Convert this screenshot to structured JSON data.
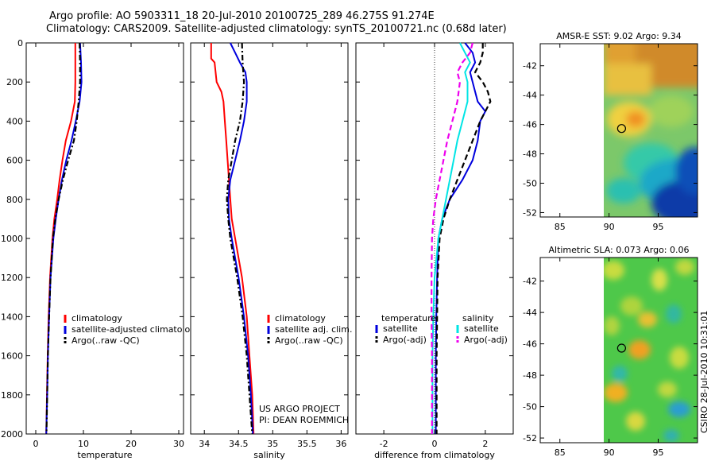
{
  "header": {
    "line1": "Argo profile: AO 5903311_18 20-Jul-2010 20100725_289 46.275S 91.274E",
    "line2": "Climatology: CARS2009. Satellite-adjusted climatology: synTS_20100721.nc (0.68d later)"
  },
  "side_label": "CSIRO 28-Jul-2010 10:31:01",
  "credit": {
    "line1": "US ARGO PROJECT",
    "line2": "PI: DEAN ROEMMICH"
  },
  "colors": {
    "red": "#ff0000",
    "blue": "#0000dd",
    "black": "#000000",
    "cyan": "#00e5e5",
    "magenta": "#ee00ee"
  },
  "chart_data": [
    {
      "id": "temperature",
      "type": "line",
      "xlabel": "temperature",
      "xlim": [
        -2,
        31
      ],
      "xticks": [
        0,
        10,
        20,
        30
      ],
      "ylim": [
        2000,
        0
      ],
      "yticks": [
        0,
        200,
        400,
        600,
        800,
        1000,
        1200,
        1400,
        1600,
        1800,
        2000
      ],
      "legend": [
        "climatology",
        "satellite-adjusted climatolo",
        "Argo(..raw -QC)"
      ],
      "series": [
        {
          "name": "climatology",
          "color": "red",
          "dash": "solid",
          "depth": [
            0,
            100,
            200,
            300,
            400,
            500,
            600,
            700,
            800,
            900,
            1000,
            1200,
            1400,
            1600,
            1800,
            2000
          ],
          "values": [
            8.3,
            8.3,
            8.3,
            8.2,
            7.4,
            6.3,
            5.6,
            5.0,
            4.5,
            3.9,
            3.5,
            3.0,
            2.7,
            2.5,
            2.35,
            2.2
          ]
        },
        {
          "name": "satellite-adjusted climatology",
          "color": "blue",
          "dash": "solid",
          "depth": [
            0,
            100,
            200,
            300,
            400,
            500,
            600,
            700,
            800,
            900,
            1000,
            1200,
            1400,
            1600,
            1800,
            2000
          ],
          "values": [
            9.3,
            9.5,
            9.6,
            9.2,
            8.4,
            7.5,
            6.4,
            5.5,
            4.8,
            4.2,
            3.7,
            3.1,
            2.8,
            2.55,
            2.4,
            2.2
          ]
        },
        {
          "name": "Argo(..raw -QC)",
          "color": "black",
          "dash": "dashdot",
          "depth": [
            0,
            100,
            200,
            300,
            400,
            500,
            600,
            700,
            800,
            900,
            1000,
            1200,
            1400,
            1600,
            1800,
            2000
          ],
          "values": [
            9.2,
            9.3,
            9.3,
            9.0,
            8.6,
            8.0,
            6.8,
            5.7,
            4.8,
            4.1,
            3.6,
            3.1,
            2.8,
            2.55,
            2.4,
            2.25
          ]
        }
      ]
    },
    {
      "id": "salinity",
      "type": "line",
      "xlabel": "salinity",
      "xlim": [
        33.8,
        36.1
      ],
      "xticks": [
        34,
        34.5,
        35,
        35.5,
        36
      ],
      "ylim": [
        2000,
        0
      ],
      "yticks": [
        0,
        200,
        400,
        600,
        800,
        1000,
        1200,
        1400,
        1600,
        1800,
        2000
      ],
      "legend": [
        "climatology",
        "satellite adj. clim.",
        "Argo(..raw -QC)"
      ],
      "series": [
        {
          "name": "climatology",
          "color": "red",
          "dash": "solid",
          "depth": [
            0,
            80,
            100,
            200,
            250,
            300,
            400,
            500,
            600,
            700,
            800,
            900,
            1000,
            1200,
            1400,
            1600,
            1800,
            2000
          ],
          "values": [
            34.1,
            34.1,
            34.15,
            34.18,
            34.25,
            34.28,
            34.3,
            34.32,
            34.34,
            34.36,
            34.38,
            34.4,
            34.45,
            34.55,
            34.62,
            34.66,
            34.7,
            34.72
          ]
        },
        {
          "name": "satellite adj. clim.",
          "color": "blue",
          "dash": "solid",
          "depth": [
            0,
            50,
            100,
            150,
            200,
            300,
            400,
            500,
            600,
            700,
            800,
            900,
            1000,
            1200,
            1400,
            1600,
            1800,
            2000
          ],
          "values": [
            34.38,
            34.45,
            34.52,
            34.6,
            34.62,
            34.62,
            34.58,
            34.52,
            34.45,
            34.38,
            34.35,
            34.36,
            34.4,
            34.5,
            34.58,
            34.64,
            34.68,
            34.71
          ]
        },
        {
          "name": "Argo(..raw -QC)",
          "color": "black",
          "dash": "dashdot",
          "depth": [
            0,
            100,
            200,
            300,
            400,
            500,
            600,
            700,
            800,
            900,
            1000,
            1200,
            1400,
            1600,
            1800,
            2000
          ],
          "values": [
            34.55,
            34.56,
            34.58,
            34.56,
            34.52,
            34.45,
            34.4,
            34.35,
            34.33,
            34.35,
            34.38,
            34.48,
            34.56,
            34.62,
            34.66,
            34.7
          ]
        }
      ]
    },
    {
      "id": "difference",
      "type": "line",
      "xlabel": "difference from climatology",
      "xlim": [
        -3.1,
        3.1
      ],
      "xticks": [
        -2,
        0,
        2
      ],
      "ylim": [
        2000,
        0
      ],
      "yticks": [
        0,
        200,
        400,
        600,
        800,
        1000,
        1200,
        1400,
        1600,
        1800,
        2000
      ],
      "legend_titles": [
        "temperature",
        "salinity"
      ],
      "legend": [
        "satellite",
        "Argo(-adj)",
        "satellite",
        "Argo(-adj)"
      ],
      "series": [
        {
          "name": "temperature satellite",
          "color": "blue",
          "dash": "solid",
          "depth": [
            0,
            50,
            100,
            150,
            200,
            300,
            350,
            400,
            500,
            600,
            700,
            800,
            900,
            1000,
            1200,
            1400,
            1600,
            1800,
            2000
          ],
          "values": [
            1.2,
            1.5,
            1.6,
            1.4,
            1.5,
            1.7,
            2.0,
            1.8,
            1.7,
            1.5,
            1.1,
            0.6,
            0.3,
            0.15,
            0.1,
            0.07,
            0.05,
            0.05,
            0.05
          ]
        },
        {
          "name": "temperature Argo(-adj)",
          "color": "black",
          "dash": "dashed",
          "depth": [
            0,
            50,
            100,
            150,
            200,
            250,
            300,
            350,
            400,
            500,
            600,
            700,
            800,
            900,
            1000,
            1200,
            1400,
            1600,
            1800,
            2000
          ],
          "values": [
            1.9,
            1.9,
            1.8,
            1.6,
            1.9,
            2.1,
            2.2,
            2.0,
            1.8,
            1.5,
            1.2,
            0.9,
            0.6,
            0.35,
            0.2,
            0.12,
            0.1,
            0.08,
            0.08,
            0.08
          ]
        },
        {
          "name": "salinity satellite",
          "color": "cyan",
          "dash": "solid",
          "depth": [
            0,
            50,
            100,
            150,
            200,
            300,
            400,
            500,
            600,
            700,
            800,
            900,
            1000,
            1200,
            1400,
            1600,
            1800,
            2000
          ],
          "values": [
            1.0,
            1.2,
            1.4,
            1.2,
            1.3,
            1.3,
            1.1,
            0.9,
            0.75,
            0.6,
            0.45,
            0.3,
            0.15,
            0.0,
            -0.05,
            -0.08,
            -0.08,
            -0.08
          ]
        },
        {
          "name": "salinity Argo(-adj)",
          "color": "magenta",
          "dash": "dashed",
          "depth": [
            0,
            50,
            100,
            150,
            200,
            300,
            400,
            500,
            600,
            700,
            800,
            900,
            1000,
            1200,
            1400,
            1600,
            1800,
            2000
          ],
          "values": [
            1.5,
            1.4,
            1.1,
            0.9,
            1.0,
            0.9,
            0.7,
            0.5,
            0.35,
            0.2,
            0.05,
            -0.05,
            -0.1,
            -0.12,
            -0.12,
            -0.1,
            -0.1,
            -0.1
          ]
        }
      ]
    },
    {
      "id": "sst_map",
      "type": "heatmap",
      "title": "AMSR-E SST: 9.02 Argo: 9.34",
      "xlim": [
        83,
        99
      ],
      "xticks": [
        85,
        90,
        95
      ],
      "ylim": [
        -52.3,
        -40.5
      ],
      "yticks": [
        -42,
        -44,
        -46,
        -48,
        -50,
        -52
      ],
      "data_lon_min": 90,
      "marker": {
        "lon": 91.274,
        "lat": -46.275
      }
    },
    {
      "id": "sla_map",
      "type": "heatmap",
      "title": "Altimetric SLA: 0.073 Argo: 0.06",
      "xlim": [
        83,
        99
      ],
      "xticks": [
        85,
        90,
        95
      ],
      "ylim": [
        -52.3,
        -40.5
      ],
      "yticks": [
        -42,
        -44,
        -46,
        -48,
        -50,
        -52
      ],
      "data_lon_min": 90,
      "marker": {
        "lon": 91.274,
        "lat": -46.275
      }
    }
  ]
}
